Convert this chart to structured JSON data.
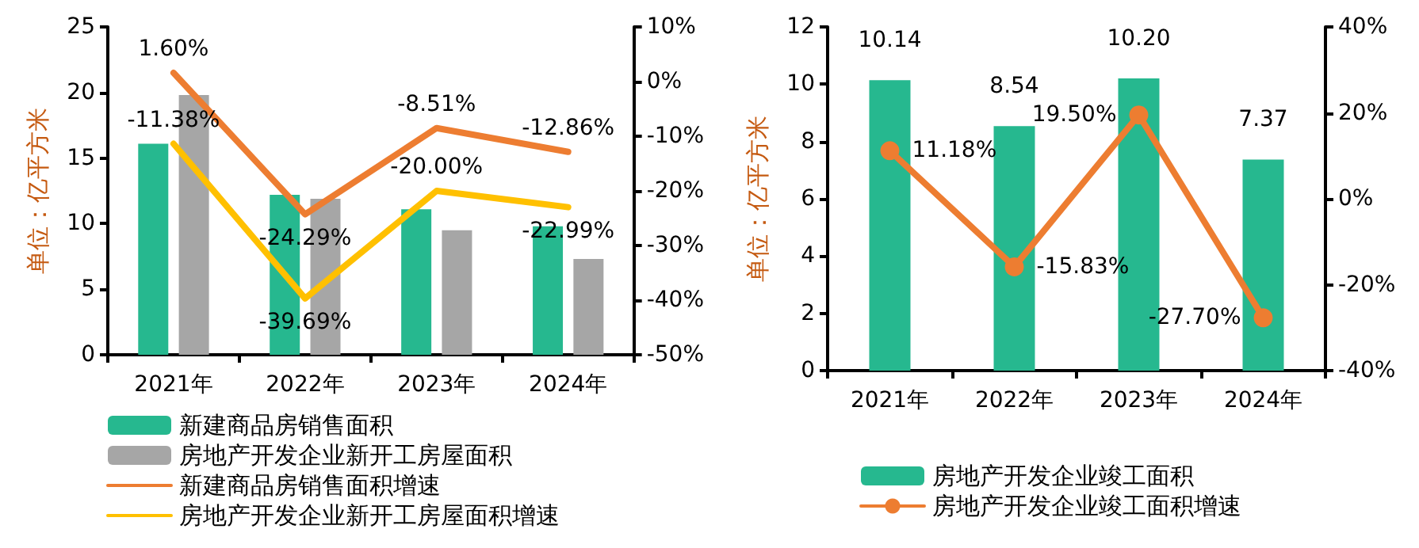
{
  "chart_data": [
    {
      "type": "bar",
      "ylabel": "单位：亿平方米",
      "categories": [
        "2021年",
        "2022年",
        "2023年",
        "2024年"
      ],
      "ylim": [
        0,
        25
      ],
      "yticks": [
        0,
        5,
        10,
        15,
        20,
        25
      ],
      "y2lim": [
        -50,
        10
      ],
      "y2ticks": [
        {
          "value": -50,
          "label": "-50%"
        },
        {
          "value": -40,
          "label": "-40%"
        },
        {
          "value": -30,
          "label": "-30%"
        },
        {
          "value": -20,
          "label": "-20%"
        },
        {
          "value": -10,
          "label": "-10%"
        },
        {
          "value": 0,
          "label": "0%"
        },
        {
          "value": 10,
          "label": "10%"
        }
      ],
      "legend": "bottom",
      "grid": false,
      "series": [
        {
          "name": "新建商品房销售面积",
          "color": "#26b88f",
          "values": [
            16.1,
            12.2,
            11.1,
            9.8
          ]
        },
        {
          "name": "房地产开发企业新开工房屋面积",
          "color": "#a6a6a6",
          "values": [
            19.8,
            11.9,
            9.5,
            7.3
          ]
        },
        {
          "name": "新建商品房销售面积增速",
          "type": "line",
          "axis": "y2",
          "marker": "none",
          "color": "#ed7d31",
          "values": [
            1.6,
            -24.29,
            -8.51,
            -12.86
          ],
          "value_labels": [
            "1.60%",
            "-24.29%",
            "-8.51%",
            "-12.86%"
          ]
        },
        {
          "name": "房地产开发企业新开工房屋面积增速",
          "type": "line",
          "axis": "y2",
          "marker": "none",
          "color": "#ffc000",
          "values": [
            -11.38,
            -39.69,
            -20.0,
            -22.99
          ],
          "value_labels": [
            "-11.38%",
            "-39.69%",
            "-20.00%",
            "-22.99%"
          ]
        }
      ]
    },
    {
      "type": "bar",
      "ylabel": "单位：亿平方米",
      "categories": [
        "2021年",
        "2022年",
        "2023年",
        "2024年"
      ],
      "ylim": [
        0,
        12
      ],
      "yticks": [
        0,
        2,
        4,
        6,
        8,
        10,
        12
      ],
      "y2lim": [
        -40,
        40
      ],
      "y2ticks": [
        {
          "value": -40,
          "label": "-40%"
        },
        {
          "value": -20,
          "label": "-20%"
        },
        {
          "value": 0,
          "label": "0%"
        },
        {
          "value": 20,
          "label": "20%"
        },
        {
          "value": 40,
          "label": "40%"
        }
      ],
      "legend": "bottom",
      "grid": false,
      "series": [
        {
          "name": "房地产开发企业竣工面积",
          "color": "#26b88f",
          "values": [
            10.14,
            8.54,
            10.2,
            7.37
          ],
          "value_labels": [
            "10.14",
            "8.54",
            "10.20",
            "7.37"
          ]
        },
        {
          "name": "房地产开发企业竣工面积增速",
          "type": "line",
          "axis": "y2",
          "marker": "circle",
          "color": "#ed7d31",
          "values": [
            11.18,
            -15.83,
            19.5,
            -27.7
          ],
          "value_labels": [
            "11.18%",
            "-15.83%",
            "19.50%",
            "-27.70%"
          ]
        }
      ]
    }
  ]
}
